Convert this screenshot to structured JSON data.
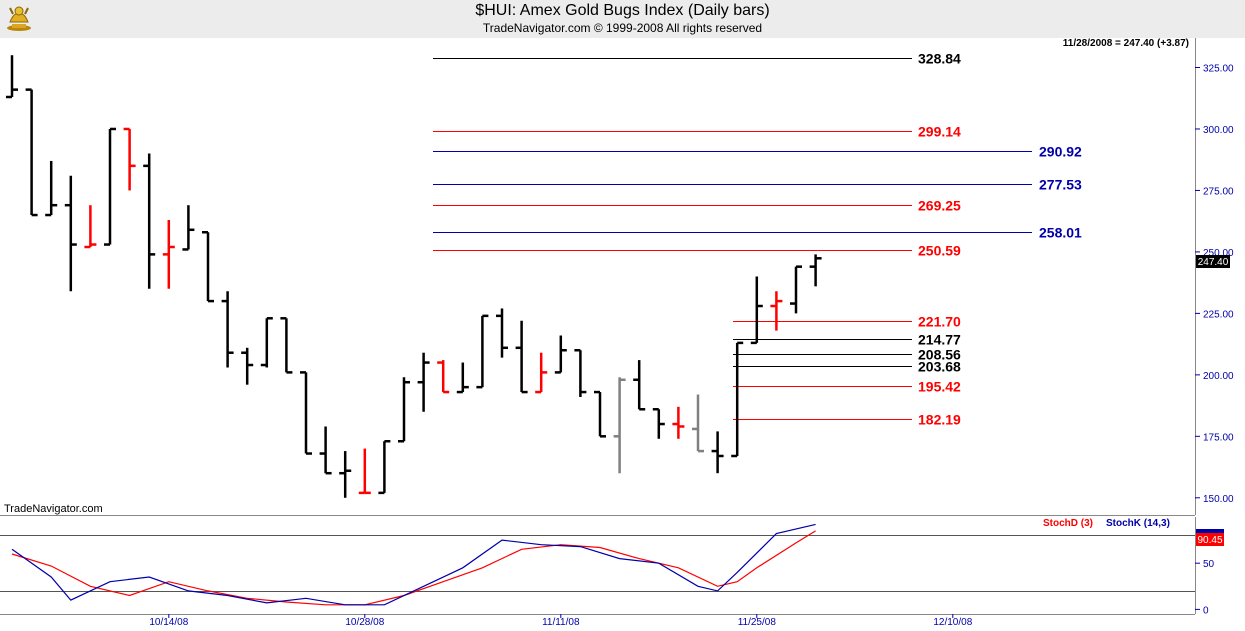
{
  "header": {
    "title": "$HUI:  Amex Gold Bugs Index  (Daily bars)",
    "subtitle": "TradeNavigator.com © 1999-2008 All rights reserved",
    "logo_icon": "trading-bull-icon"
  },
  "footer": {
    "brand": "TradeNavigator.com"
  },
  "chart_data": [
    {
      "type": "ohlc",
      "info_text": "11/28/2008 = 247.40 (+3.87)",
      "last_price": "247.40",
      "price_axis": {
        "ylim": [
          143,
          337
        ],
        "ticks": [
          "150.00",
          "175.00",
          "200.00",
          "225.00",
          "250.00",
          "275.00",
          "300.00",
          "325.00"
        ]
      },
      "x_ticks": [
        {
          "label": "10/14/08",
          "bar": 8
        },
        {
          "label": "10/28/08",
          "bar": 18
        },
        {
          "label": "11/11/08",
          "bar": 28
        },
        {
          "label": "11/25/08",
          "bar": 38
        },
        {
          "label": "12/10/08",
          "bar": 48
        }
      ],
      "colors": {
        "up": "#000000",
        "red": "#ff0000",
        "gray": "#808080",
        "axis": "#0000aa",
        "blue": "#0000aa"
      },
      "bars": [
        {
          "o": 313,
          "h": 330,
          "l": 313,
          "c": 316,
          "color": "black"
        },
        {
          "o": 316,
          "h": 316,
          "l": 265,
          "c": 265,
          "color": "black"
        },
        {
          "o": 265,
          "h": 287,
          "l": 265,
          "c": 269,
          "color": "black"
        },
        {
          "o": 269,
          "h": 281,
          "l": 234,
          "c": 253,
          "color": "black"
        },
        {
          "o": 252,
          "h": 269,
          "l": 252,
          "c": 253,
          "color": "red"
        },
        {
          "o": 253,
          "h": 300,
          "l": 253,
          "c": 300,
          "color": "black"
        },
        {
          "o": 300,
          "h": 300,
          "l": 275,
          "c": 285,
          "color": "red"
        },
        {
          "o": 285,
          "h": 290,
          "l": 235,
          "c": 249,
          "color": "black"
        },
        {
          "o": 249,
          "h": 263,
          "l": 235,
          "c": 252,
          "color": "red"
        },
        {
          "o": 251,
          "h": 269,
          "l": 251,
          "c": 259,
          "color": "black"
        },
        {
          "o": 258,
          "h": 258,
          "l": 230,
          "c": 230,
          "color": "black"
        },
        {
          "o": 230,
          "h": 234,
          "l": 203,
          "c": 209,
          "color": "black"
        },
        {
          "o": 209,
          "h": 211,
          "l": 196,
          "c": 204,
          "color": "black"
        },
        {
          "o": 204,
          "h": 223,
          "l": 203,
          "c": 223,
          "color": "black"
        },
        {
          "o": 223,
          "h": 223,
          "l": 201,
          "c": 201,
          "color": "black"
        },
        {
          "o": 201,
          "h": 201,
          "l": 168,
          "c": 168,
          "color": "black"
        },
        {
          "o": 168,
          "h": 179,
          "l": 160,
          "c": 160,
          "color": "black"
        },
        {
          "o": 160,
          "h": 169,
          "l": 150,
          "c": 161,
          "color": "black"
        },
        {
          "o": 152,
          "h": 170,
          "l": 152,
          "c": 152,
          "color": "red"
        },
        {
          "o": 152,
          "h": 173,
          "l": 152,
          "c": 173,
          "color": "black"
        },
        {
          "o": 173,
          "h": 199,
          "l": 173,
          "c": 197,
          "color": "black"
        },
        {
          "o": 197,
          "h": 209,
          "l": 185,
          "c": 205,
          "color": "black"
        },
        {
          "o": 205,
          "h": 206,
          "l": 193,
          "c": 193,
          "color": "red"
        },
        {
          "o": 193,
          "h": 205,
          "l": 193,
          "c": 195,
          "color": "black"
        },
        {
          "o": 195,
          "h": 224,
          "l": 195,
          "c": 224,
          "color": "black"
        },
        {
          "o": 224,
          "h": 227,
          "l": 207,
          "c": 211,
          "color": "black"
        },
        {
          "o": 211,
          "h": 222,
          "l": 193,
          "c": 193,
          "color": "black"
        },
        {
          "o": 193,
          "h": 209,
          "l": 193,
          "c": 201,
          "color": "red"
        },
        {
          "o": 201,
          "h": 216,
          "l": 201,
          "c": 210,
          "color": "black"
        },
        {
          "o": 210,
          "h": 210,
          "l": 191,
          "c": 193,
          "color": "black"
        },
        {
          "o": 193,
          "h": 193,
          "l": 175,
          "c": 175,
          "color": "black"
        },
        {
          "o": 175,
          "h": 199,
          "l": 160,
          "c": 198,
          "color": "gray"
        },
        {
          "o": 198,
          "h": 206,
          "l": 186,
          "c": 186,
          "color": "black"
        },
        {
          "o": 186,
          "h": 186,
          "l": 174,
          "c": 180,
          "color": "black"
        },
        {
          "o": 180,
          "h": 187,
          "l": 174,
          "c": 179,
          "color": "red"
        },
        {
          "o": 178,
          "h": 192,
          "l": 169,
          "c": 169,
          "color": "gray"
        },
        {
          "o": 169,
          "h": 177,
          "l": 160,
          "c": 167,
          "color": "black"
        },
        {
          "o": 167,
          "h": 213,
          "l": 167,
          "c": 213,
          "color": "black"
        },
        {
          "o": 213,
          "h": 240,
          "l": 213,
          "c": 228,
          "color": "black"
        },
        {
          "o": 228,
          "h": 234,
          "l": 218,
          "c": 230,
          "color": "red"
        },
        {
          "o": 229,
          "h": 244,
          "l": 225,
          "c": 244,
          "color": "black"
        },
        {
          "o": 244,
          "h": 249,
          "l": 236,
          "c": 247.4,
          "color": "black"
        }
      ],
      "levels": [
        {
          "value": 328.84,
          "label": "328.84",
          "color": "#000000",
          "x1": 433,
          "x2": 912,
          "label_x": 918
        },
        {
          "value": 299.14,
          "label": "299.14",
          "color": "#ff0000",
          "x1": 433,
          "x2": 912,
          "label_x": 918
        },
        {
          "value": 290.92,
          "label": "290.92",
          "color": "#0000aa",
          "x1": 433,
          "x2": 1032,
          "label_x": 1039
        },
        {
          "value": 277.53,
          "label": "277.53",
          "color": "#0000aa",
          "x1": 433,
          "x2": 1032,
          "label_x": 1039
        },
        {
          "value": 269.25,
          "label": "269.25",
          "color": "#ff0000",
          "x1": 433,
          "x2": 912,
          "label_x": 918
        },
        {
          "value": 258.01,
          "label": "258.01",
          "color": "#0000aa",
          "x1": 433,
          "x2": 1032,
          "label_x": 1039
        },
        {
          "value": 250.59,
          "label": "250.59",
          "color": "#ff0000",
          "x1": 433,
          "x2": 912,
          "label_x": 918
        },
        {
          "value": 221.7,
          "label": "221.70",
          "color": "#ff0000",
          "x1": 733,
          "x2": 912,
          "label_x": 918
        },
        {
          "value": 214.77,
          "label": "214.77",
          "color": "#000000",
          "x1": 733,
          "x2": 912,
          "label_x": 918
        },
        {
          "value": 208.56,
          "label": "208.56",
          "color": "#000000",
          "x1": 733,
          "x2": 912,
          "label_x": 918
        },
        {
          "value": 203.68,
          "label": "203.68",
          "color": "#000000",
          "x1": 733,
          "x2": 912,
          "label_x": 918
        },
        {
          "value": 195.42,
          "label": "195.42",
          "color": "#ff0000",
          "x1": 733,
          "x2": 912,
          "label_x": 918
        },
        {
          "value": 182.19,
          "label": "182.19",
          "color": "#ff0000",
          "x1": 733,
          "x2": 912,
          "label_x": 918
        }
      ]
    },
    {
      "type": "line",
      "legend": [
        {
          "name": "StochD (3)",
          "color": "#ff0000"
        },
        {
          "name": "StochK (14,3)",
          "color": "#0000aa"
        }
      ],
      "last_value": "90.45",
      "ylim": [
        -5,
        100
      ],
      "ticks": [
        "0",
        "50"
      ],
      "reference_lines": [
        20,
        80
      ],
      "stochD": [
        {
          "x": 0,
          "y": 60
        },
        {
          "x": 2,
          "y": 47
        },
        {
          "x": 4,
          "y": 25
        },
        {
          "x": 6,
          "y": 15
        },
        {
          "x": 8,
          "y": 30
        },
        {
          "x": 10,
          "y": 20
        },
        {
          "x": 12,
          "y": 12
        },
        {
          "x": 14,
          "y": 8
        },
        {
          "x": 16,
          "y": 5
        },
        {
          "x": 18,
          "y": 5
        },
        {
          "x": 20,
          "y": 15
        },
        {
          "x": 22,
          "y": 30
        },
        {
          "x": 24,
          "y": 45
        },
        {
          "x": 26,
          "y": 65
        },
        {
          "x": 28,
          "y": 70
        },
        {
          "x": 30,
          "y": 67
        },
        {
          "x": 32,
          "y": 55
        },
        {
          "x": 34,
          "y": 45
        },
        {
          "x": 36,
          "y": 25
        },
        {
          "x": 37,
          "y": 30
        },
        {
          "x": 38,
          "y": 45
        },
        {
          "x": 40,
          "y": 72
        },
        {
          "x": 41,
          "y": 85
        }
      ],
      "stochK": [
        {
          "x": 0,
          "y": 65
        },
        {
          "x": 2,
          "y": 35
        },
        {
          "x": 3,
          "y": 10
        },
        {
          "x": 5,
          "y": 30
        },
        {
          "x": 7,
          "y": 35
        },
        {
          "x": 9,
          "y": 20
        },
        {
          "x": 11,
          "y": 15
        },
        {
          "x": 13,
          "y": 7
        },
        {
          "x": 15,
          "y": 12
        },
        {
          "x": 17,
          "y": 5
        },
        {
          "x": 19,
          "y": 5
        },
        {
          "x": 21,
          "y": 25
        },
        {
          "x": 23,
          "y": 45
        },
        {
          "x": 25,
          "y": 75
        },
        {
          "x": 27,
          "y": 70
        },
        {
          "x": 29,
          "y": 68
        },
        {
          "x": 31,
          "y": 55
        },
        {
          "x": 33,
          "y": 50
        },
        {
          "x": 35,
          "y": 25
        },
        {
          "x": 36,
          "y": 20
        },
        {
          "x": 37,
          "y": 40
        },
        {
          "x": 39,
          "y": 82
        },
        {
          "x": 41,
          "y": 92
        }
      ]
    }
  ]
}
